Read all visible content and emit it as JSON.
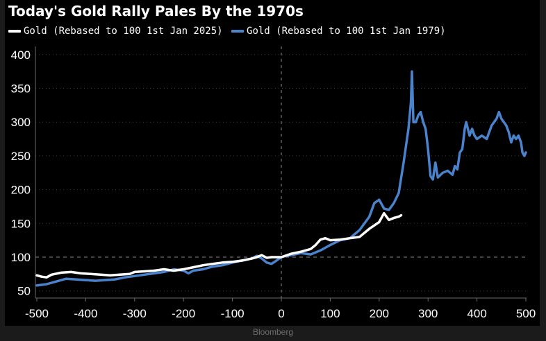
{
  "title": "Today's Gold Rally Pales By the 1970s",
  "source": "Bloomberg",
  "colors": {
    "background": "#000000",
    "frame": "#1b1b1b",
    "white_series": "#ffffff",
    "blue_series": "#4a82cc",
    "grid": "#555555"
  },
  "chart_data": {
    "type": "line",
    "title": "Today's Gold Rally Pales By the 1970s",
    "xlabel": "",
    "ylabel": "",
    "xlim": [
      -500,
      500
    ],
    "ylim": [
      50,
      400
    ],
    "xticks": [
      -500,
      -400,
      -300,
      -200,
      -100,
      0,
      100,
      200,
      300,
      400,
      500
    ],
    "yticks": [
      50,
      100,
      150,
      200,
      250,
      300,
      350,
      400
    ],
    "grid": true,
    "reference_lines": {
      "y": 100,
      "x": 0
    },
    "legend_position": "top-left",
    "series": [
      {
        "name": "Gold (Rebased to 100 1st Jan 2025)",
        "color": "#ffffff",
        "x": [
          -500,
          -490,
          -480,
          -470,
          -450,
          -430,
          -410,
          -390,
          -370,
          -350,
          -330,
          -310,
          -300,
          -280,
          -260,
          -240,
          -220,
          -200,
          -180,
          -160,
          -140,
          -120,
          -100,
          -80,
          -60,
          -50,
          -40,
          -30,
          -20,
          -10,
          0,
          20,
          40,
          60,
          70,
          80,
          90,
          100,
          120,
          140,
          160,
          180,
          200,
          210,
          220,
          230,
          240,
          245
        ],
        "y": [
          73,
          71,
          70,
          74,
          77,
          78,
          76,
          75,
          74,
          73,
          74,
          75,
          78,
          79,
          80,
          82,
          80,
          82,
          85,
          88,
          90,
          92,
          93,
          95,
          98,
          100,
          103,
          99,
          100,
          100,
          100,
          105,
          108,
          112,
          118,
          126,
          128,
          125,
          126,
          128,
          130,
          142,
          152,
          165,
          155,
          158,
          160,
          162
        ]
      },
      {
        "name": "Gold (Rebased to 100 1st Jan 1979)",
        "color": "#4a82cc",
        "x": [
          -500,
          -480,
          -460,
          -440,
          -420,
          -400,
          -380,
          -360,
          -340,
          -320,
          -300,
          -280,
          -260,
          -240,
          -220,
          -200,
          -190,
          -180,
          -160,
          -140,
          -120,
          -100,
          -80,
          -60,
          -50,
          -40,
          -30,
          -20,
          -10,
          0,
          10,
          20,
          40,
          60,
          80,
          100,
          120,
          140,
          160,
          180,
          190,
          200,
          210,
          220,
          230,
          240,
          250,
          255,
          260,
          265,
          267,
          270,
          275,
          280,
          285,
          290,
          295,
          300,
          305,
          310,
          315,
          320,
          330,
          340,
          350,
          355,
          360,
          365,
          370,
          375,
          378,
          385,
          390,
          395,
          400,
          410,
          420,
          430,
          440,
          445,
          450,
          455,
          460,
          465,
          470,
          475,
          480,
          485,
          490,
          493,
          497,
          500
        ],
        "y": [
          58,
          60,
          64,
          68,
          67,
          66,
          65,
          66,
          67,
          70,
          72,
          74,
          76,
          78,
          82,
          80,
          76,
          80,
          82,
          86,
          88,
          92,
          95,
          98,
          102,
          98,
          92,
          90,
          95,
          100,
          102,
          103,
          106,
          104,
          110,
          118,
          125,
          128,
          140,
          160,
          180,
          185,
          172,
          170,
          180,
          195,
          240,
          265,
          290,
          330,
          375,
          300,
          300,
          310,
          315,
          300,
          290,
          260,
          220,
          215,
          240,
          218,
          225,
          228,
          222,
          235,
          230,
          255,
          260,
          290,
          300,
          280,
          290,
          280,
          275,
          280,
          275,
          295,
          305,
          315,
          305,
          300,
          295,
          285,
          270,
          280,
          275,
          280,
          270,
          255,
          250,
          255
        ]
      }
    ]
  }
}
